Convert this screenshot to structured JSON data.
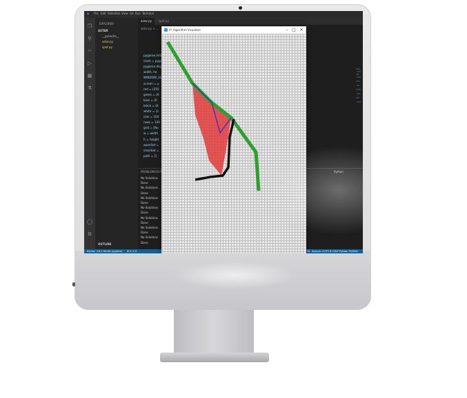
{
  "vscode": {
    "menu": [
      "File",
      "Edit",
      "Selection",
      "View",
      "Go",
      "Run",
      "Terminal"
    ],
    "explorer": {
      "header": "EXPLORER",
      "root": "ASTAR",
      "items": [
        "__pycache__",
        "astar.py",
        "spot.py"
      ],
      "outline": "OUTLINE"
    },
    "tabs": [
      "astar.py",
      "spot.py"
    ],
    "breadcrumb": "astar.py > ...",
    "code_lines": [
      {
        "num": "",
        "text": "pygame.init()"
      },
      {
        "num": "",
        "text": "clock = pyga"
      },
      {
        "num": "",
        "text": "pygame.disp"
      },
      {
        "num": "",
        "text": "width, he"
      },
      {
        "num": "",
        "text": "WINDOW_SIZ"
      },
      {
        "num": "",
        "text": "screen = p"
      },
      {
        "num": "",
        "text": "red = (255"
      },
      {
        "num": "",
        "text": "green = (0"
      },
      {
        "num": "",
        "text": "blue = (0"
      },
      {
        "num": "",
        "text": "black = (0"
      },
      {
        "num": "",
        "text": "white = (2"
      },
      {
        "num": "",
        "text": "cols = 100"
      },
      {
        "num": "",
        "text": "rows = 100"
      },
      {
        "num": "",
        "text": "grid = [No"
      },
      {
        "num": "",
        "text": "w = width"
      },
      {
        "num": "",
        "text": "h = height"
      },
      {
        "num": "",
        "text": "openSet ="
      },
      {
        "num": "",
        "text": "closeSet ="
      },
      {
        "num": "",
        "text": "path = []"
      }
    ],
    "panel_tabs": [
      "PROBLEMS",
      "OUTPUT",
      "TERMINAL"
    ],
    "terminal_lines": [
      "No Solutions",
      "Done",
      "No Solutions",
      "Done",
      "No Solutions",
      "Done",
      "No Solutions",
      "Done",
      "No Solutions",
      "Done",
      "No Solutions",
      "Done",
      "No Solutions",
      "Done"
    ],
    "terminal_dropdown": "Python",
    "status_left": "Python 3.8.2 64-bit (system)",
    "status_left_icons": "⊗ 0 ⚠ 0",
    "status_right": [
      "Ln 6, Col 38",
      "Spaces: 4",
      "UTF-8",
      "CRLF",
      "Python",
      "Prettier"
    ]
  },
  "visualizer": {
    "title": "A* Algorithm Visualiser",
    "controls": [
      "–",
      "□",
      "✕"
    ]
  },
  "colors": {
    "path": "#2ca02c",
    "explored": "#e23b3b",
    "wall": "#111111",
    "line": "#2b2bcf",
    "statusbar": "#0e639c"
  }
}
